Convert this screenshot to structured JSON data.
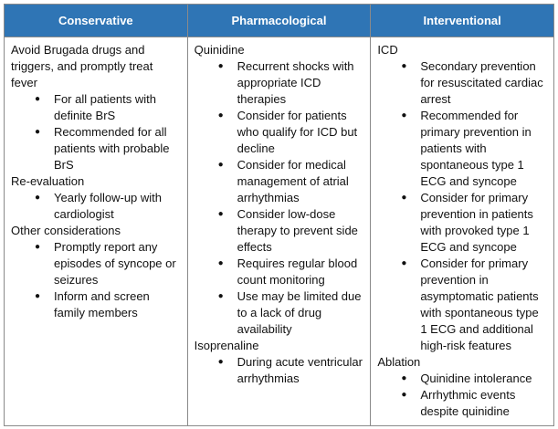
{
  "table": {
    "columns": [
      {
        "header": "Conservative",
        "sections": [
          {
            "heading": "Avoid Brugada drugs and triggers, and promptly treat fever",
            "items": [
              "For all patients with definite BrS",
              "Recommended for all patients with probable BrS"
            ]
          },
          {
            "heading": "Re-evaluation",
            "items": [
              "Yearly follow-up with cardiologist"
            ]
          },
          {
            "heading": "Other considerations",
            "items": [
              "Promptly report any episodes of syncope or seizures",
              "Inform and screen family members"
            ]
          }
        ]
      },
      {
        "header": "Pharmacological",
        "sections": [
          {
            "heading": "Quinidine",
            "items": [
              "Recurrent shocks with appropriate ICD therapies",
              "Consider for patients who qualify for ICD but decline",
              "Consider for medical management of atrial arrhythmias",
              "Consider low-dose therapy to prevent side effects",
              "Requires regular blood count monitoring",
              "Use may be limited due to a lack of drug availability"
            ]
          },
          {
            "heading": "Isoprenaline",
            "items": [
              "During acute ventricular arrhythmias"
            ]
          }
        ]
      },
      {
        "header": "Interventional",
        "sections": [
          {
            "heading": "ICD",
            "items": [
              "Secondary prevention for resuscitated cardiac arrest",
              "Recommended for primary prevention in patients with spontaneous type 1 ECG and syncope",
              "Consider for primary prevention in patients with provoked type 1 ECG and syncope",
              "Consider for primary prevention in asymptomatic patients with spontaneous type 1 ECG and additional high-risk features"
            ]
          },
          {
            "heading": "Ablation",
            "items": [
              "Quinidine intolerance",
              "Arrhythmic events despite quinidine"
            ]
          }
        ]
      }
    ]
  }
}
